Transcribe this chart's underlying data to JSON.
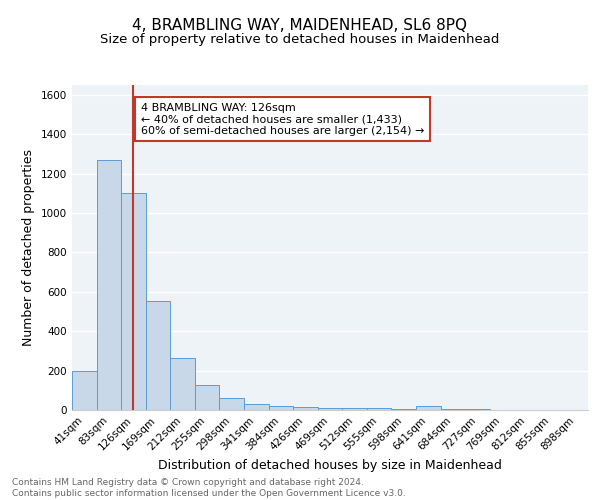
{
  "title": "4, BRAMBLING WAY, MAIDENHEAD, SL6 8PQ",
  "subtitle": "Size of property relative to detached houses in Maidenhead",
  "xlabel": "Distribution of detached houses by size in Maidenhead",
  "ylabel": "Number of detached properties",
  "bar_labels": [
    "41sqm",
    "83sqm",
    "126sqm",
    "169sqm",
    "212sqm",
    "255sqm",
    "298sqm",
    "341sqm",
    "384sqm",
    "426sqm",
    "469sqm",
    "512sqm",
    "555sqm",
    "598sqm",
    "641sqm",
    "684sqm",
    "727sqm",
    "769sqm",
    "812sqm",
    "855sqm",
    "898sqm"
  ],
  "bar_values": [
    200,
    1270,
    1100,
    555,
    265,
    125,
    60,
    32,
    20,
    15,
    10,
    8,
    10,
    5,
    18,
    5,
    3,
    2,
    2,
    2,
    2
  ],
  "bar_color": "#c8d8e8",
  "bar_edge_color": "#5b9bd5",
  "vline_x_index": 2,
  "vline_color": "#c0392b",
  "ylim": [
    0,
    1650
  ],
  "yticks": [
    0,
    200,
    400,
    600,
    800,
    1000,
    1200,
    1400,
    1600
  ],
  "annotation_title": "4 BRAMBLING WAY: 126sqm",
  "annotation_line1": "← 40% of detached houses are smaller (1,433)",
  "annotation_line2": "60% of semi-detached houses are larger (2,154) →",
  "annotation_box_color": "#c0392b",
  "footer_line1": "Contains HM Land Registry data © Crown copyright and database right 2024.",
  "footer_line2": "Contains public sector information licensed under the Open Government Licence v3.0.",
  "bg_color": "#eef3f8",
  "grid_color": "#ffffff",
  "title_fontsize": 11,
  "subtitle_fontsize": 9.5,
  "axis_label_fontsize": 9,
  "tick_fontsize": 7.5,
  "footer_fontsize": 6.5,
  "annotation_fontsize": 8
}
